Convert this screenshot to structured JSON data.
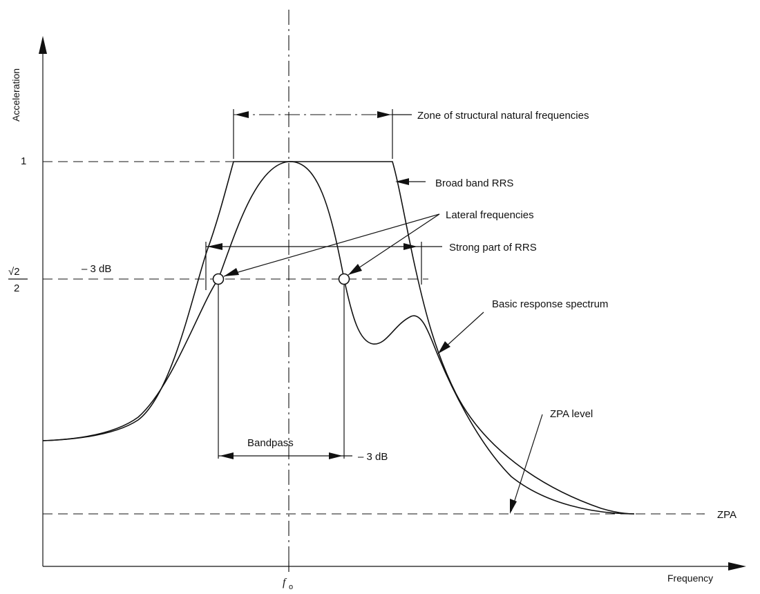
{
  "axes": {
    "y_label": "Acceleration",
    "x_label": "Frequency",
    "y_tick_one": "1",
    "y_tick_sqrt2_numerator": "√2",
    "y_tick_sqrt2_denominator": "2",
    "x_tick_f0_main": "f",
    "x_tick_f0_sub": "o"
  },
  "labels": {
    "zone": "Zone of structural natural frequencies",
    "broad_band": "Broad band RRS",
    "lateral": "Lateral frequencies",
    "strong_part": "Strong part of RRS",
    "minus3db_left": "– 3 dB",
    "basic_spectrum": "Basic response spectrum",
    "zpa_level": "ZPA level",
    "bandpass": "Bandpass",
    "minus3db_bottom": "– 3 dB",
    "zpa": "ZPA"
  }
}
